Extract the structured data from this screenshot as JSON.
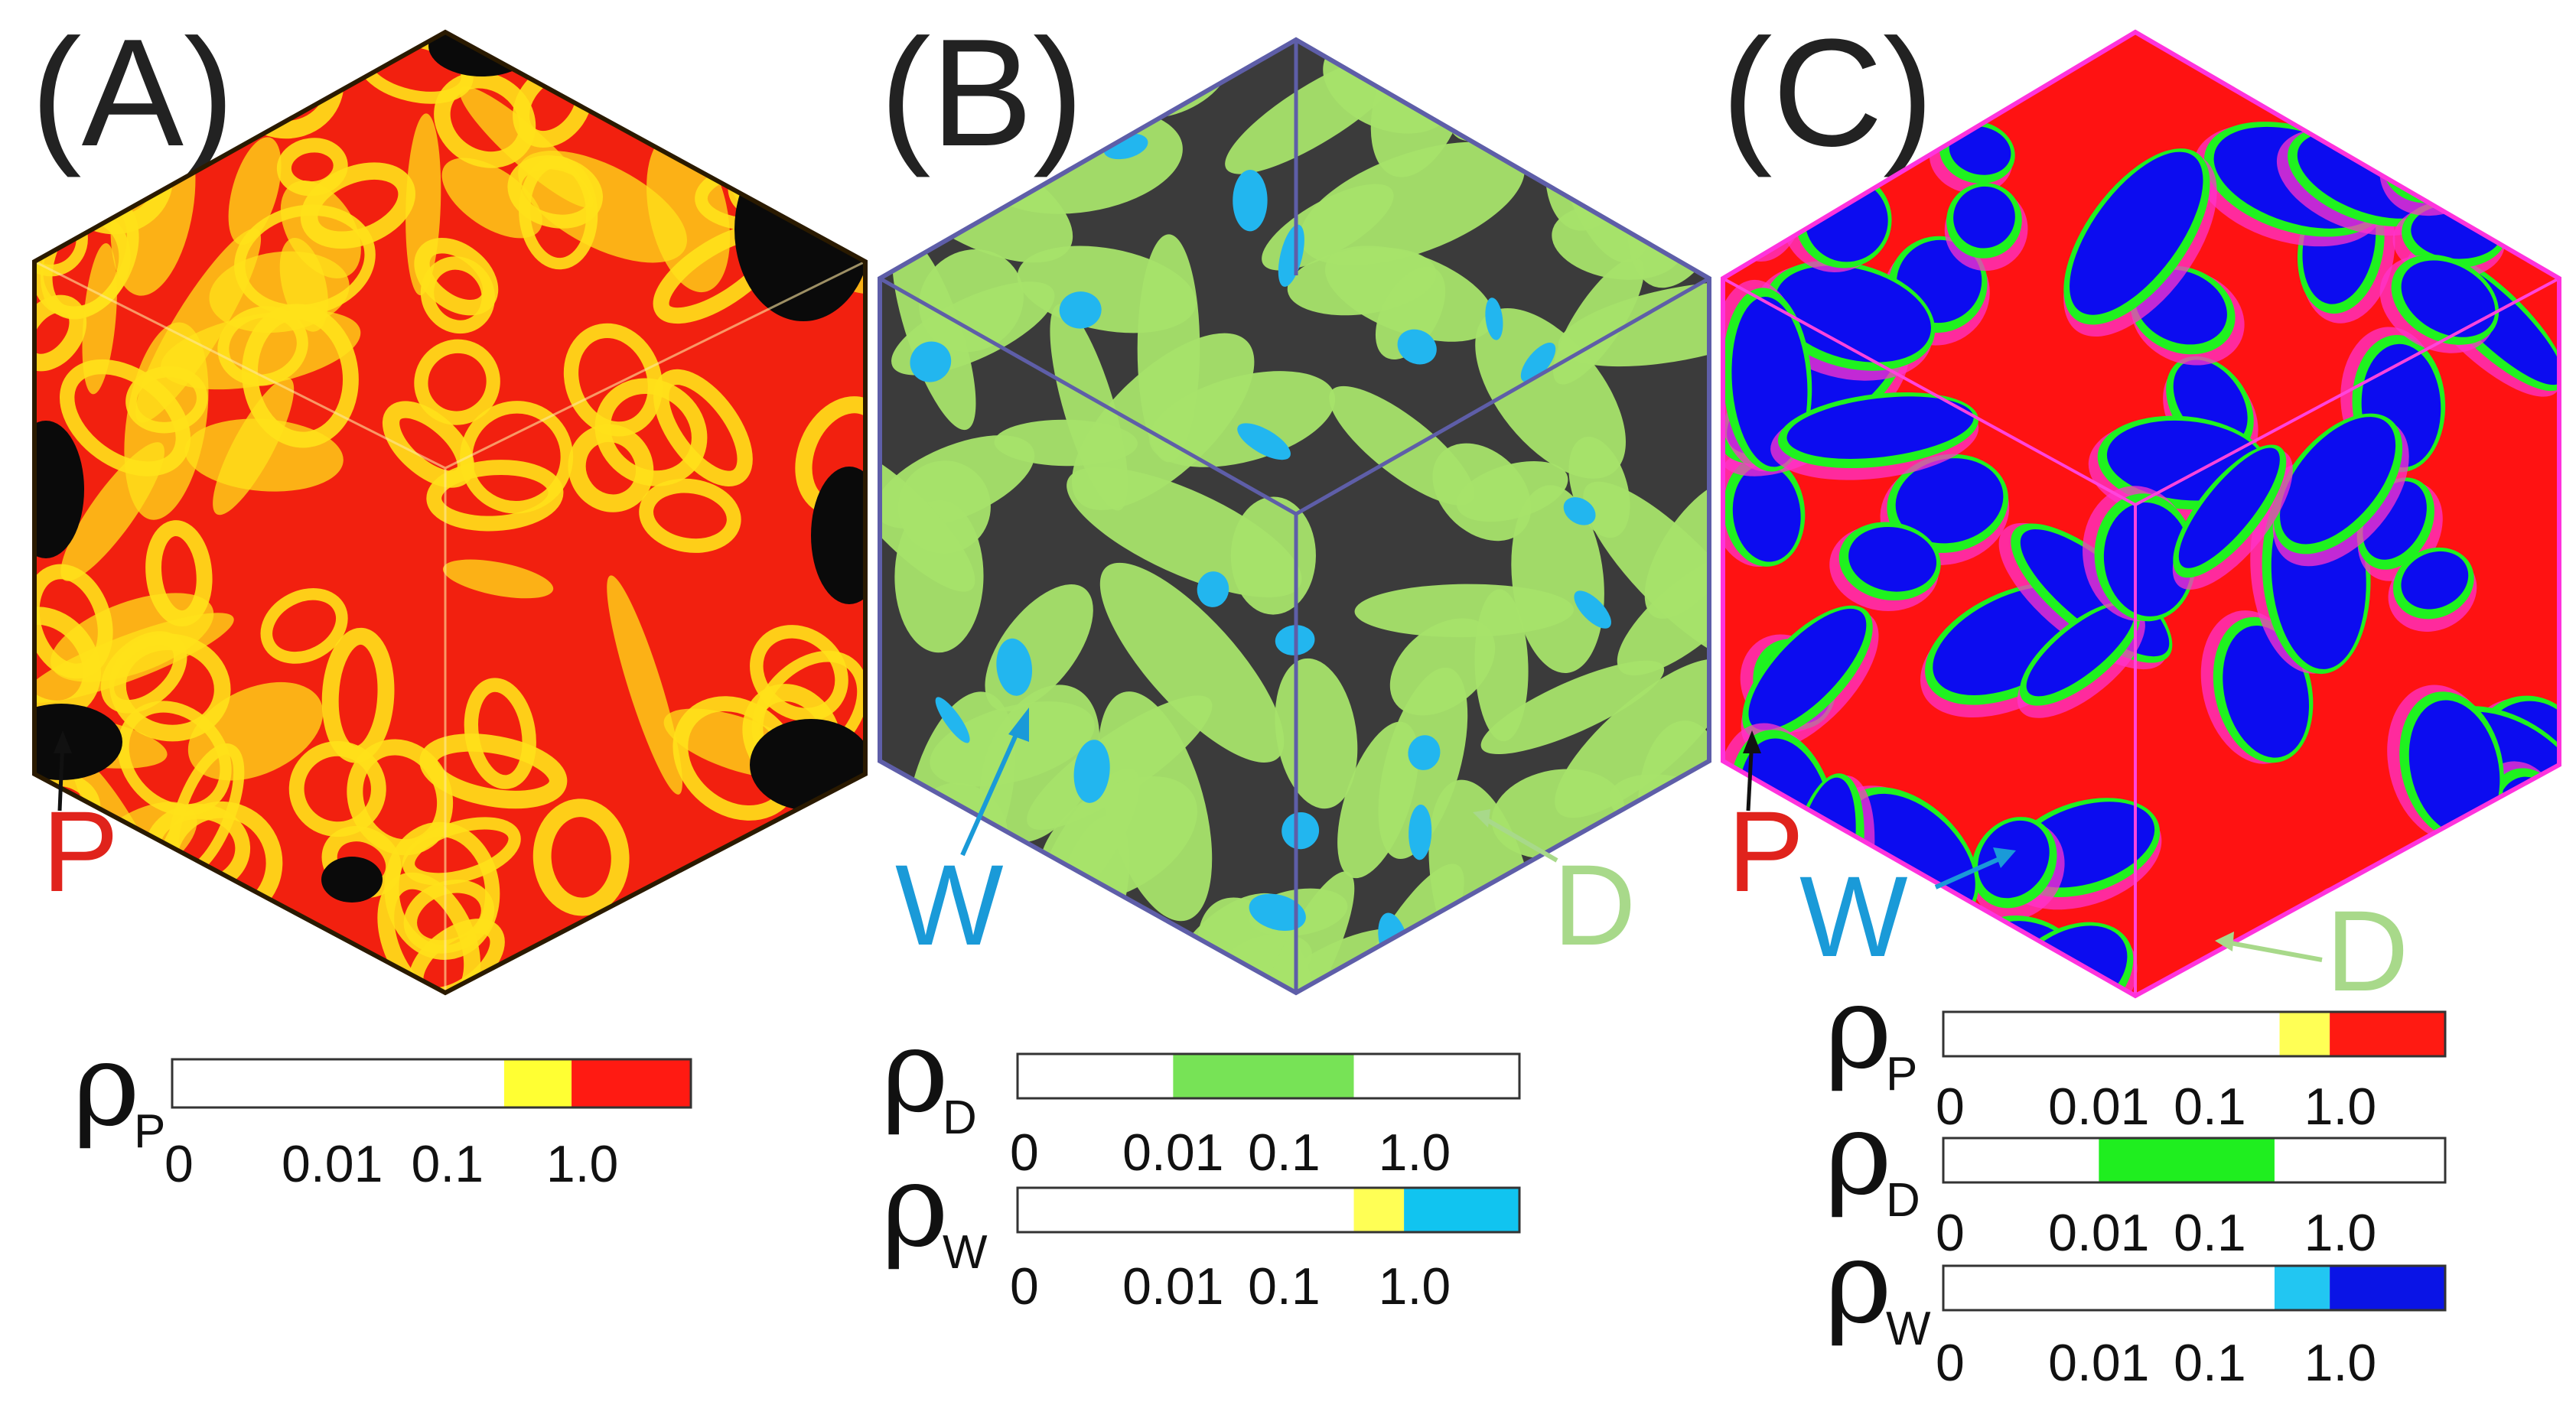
{
  "panels": [
    {
      "label": "(A)",
      "markers": [
        {
          "text": "P",
          "color": "#e0231c"
        }
      ],
      "colorbars": [
        {
          "symbol": "ρ",
          "sub": "P",
          "ticks": [
            "0",
            "0.01",
            "0.1",
            "1.0"
          ],
          "bands": [
            {
              "from": 0.0,
              "to": 0.64,
              "color": "#ffffff"
            },
            {
              "from": 0.64,
              "to": 0.77,
              "color": "#ffff33"
            },
            {
              "from": 0.77,
              "to": 1.0,
              "color": "#ff1a12"
            }
          ]
        }
      ]
    },
    {
      "label": "(B)",
      "markers": [
        {
          "text": "W",
          "color": "#1a9ad8"
        },
        {
          "text": "D",
          "color": "#a8d98a"
        }
      ],
      "colorbars": [
        {
          "symbol": "ρ",
          "sub": "D",
          "ticks": [
            "0",
            "0.01",
            "0.1",
            "1.0"
          ],
          "bands": [
            {
              "from": 0.0,
              "to": 0.31,
              "color": "#ffffff"
            },
            {
              "from": 0.31,
              "to": 0.67,
              "color": "#77e356"
            },
            {
              "from": 0.67,
              "to": 1.0,
              "color": "#ffffff"
            }
          ]
        },
        {
          "symbol": "ρ",
          "sub": "W",
          "ticks": [
            "0",
            "0.01",
            "0.1",
            "1.0"
          ],
          "bands": [
            {
              "from": 0.0,
              "to": 0.67,
              "color": "#ffffff"
            },
            {
              "from": 0.67,
              "to": 0.77,
              "color": "#ffff55"
            },
            {
              "from": 0.77,
              "to": 1.0,
              "color": "#11c4f0"
            }
          ]
        }
      ]
    },
    {
      "label": "(C)",
      "markers": [
        {
          "text": "P",
          "color": "#e0231c"
        },
        {
          "text": "W",
          "color": "#1a9ad8"
        },
        {
          "text": "D",
          "color": "#a8d98a"
        }
      ],
      "colorbars": [
        {
          "symbol": "ρ",
          "sub": "P",
          "ticks": [
            "0",
            "0.01",
            "0.1",
            "1.0"
          ],
          "bands": [
            {
              "from": 0.0,
              "to": 0.67,
              "color": "#ffffff"
            },
            {
              "from": 0.67,
              "to": 0.77,
              "color": "#ffff55"
            },
            {
              "from": 0.77,
              "to": 1.0,
              "color": "#ff1a12"
            }
          ]
        },
        {
          "symbol": "ρ",
          "sub": "D",
          "ticks": [
            "0",
            "0.01",
            "0.1",
            "1.0"
          ],
          "bands": [
            {
              "from": 0.0,
              "to": 0.31,
              "color": "#ffffff"
            },
            {
              "from": 0.31,
              "to": 0.66,
              "color": "#1fee1f"
            },
            {
              "from": 0.66,
              "to": 1.0,
              "color": "#ffffff"
            }
          ]
        },
        {
          "symbol": "ρ",
          "sub": "W",
          "ticks": [
            "0",
            "0.01",
            "0.1",
            "1.0"
          ],
          "bands": [
            {
              "from": 0.0,
              "to": 0.66,
              "color": "#ffffff"
            },
            {
              "from": 0.66,
              "to": 0.77,
              "color": "#22c6f2"
            },
            {
              "from": 0.77,
              "to": 1.0,
              "color": "#0a14e6"
            }
          ]
        }
      ]
    }
  ],
  "colors": {
    "panelA_base": "#f2200f",
    "panelA_blob": "#ffe11a",
    "panelA_hole": "#0a0a0a",
    "panelB_base": "#3b3b3b",
    "panelB_blob": "#a7e36a",
    "panelB_core": "#22b6ef",
    "panelB_edge": "#5e5ea8",
    "panelC_base": "#ff1212",
    "panelC_blue": "#0c0cf0",
    "panelC_green": "#1ff21f",
    "panelC_magenta": "#ff33cc"
  }
}
